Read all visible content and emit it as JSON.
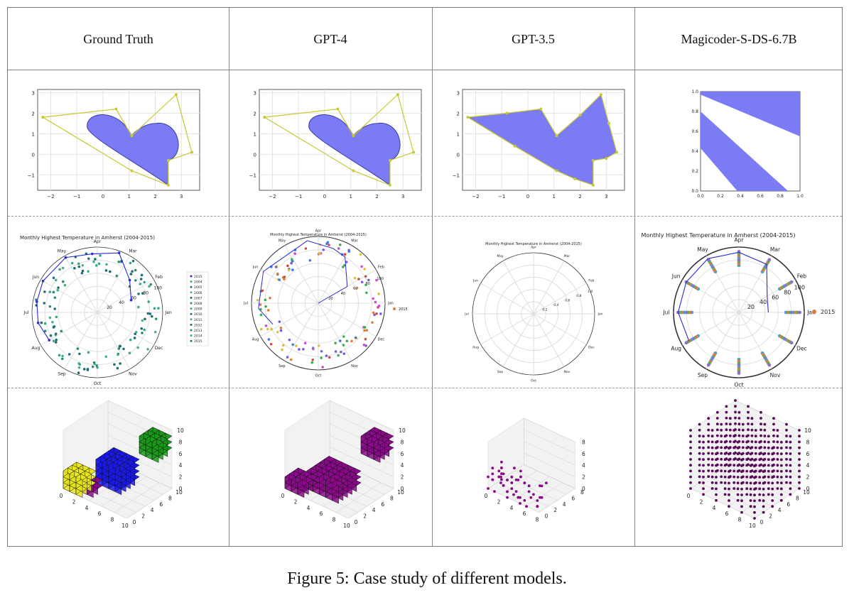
{
  "columns": [
    "Ground Truth",
    "GPT-4",
    "GPT-3.5",
    "Magicoder-S-DS-6.7B"
  ],
  "caption": "Figure 5: Case study of different models.",
  "row1_axes": {
    "x_ticks": [
      "−2",
      "−1",
      "0",
      "1",
      "2",
      "3"
    ],
    "y_ticks": [
      "3",
      "2",
      "1",
      "0",
      "−1"
    ],
    "unit_ticks": [
      "0.0",
      "0.2",
      "0.4",
      "0.6",
      "0.8",
      "1.0"
    ]
  },
  "row2": {
    "title": "Monthly Highest Temperature in Amherst (2004-2015)",
    "months": [
      "Jan",
      "Feb",
      "Mar",
      "Apr",
      "May",
      "Jun",
      "Jul",
      "Aug",
      "Sep",
      "Oct",
      "Nov",
      "Dec"
    ],
    "radial_ticks": [
      "20",
      "40",
      "60",
      "80",
      "100"
    ],
    "unit_radial_ticks": [
      "0.2",
      "0.4",
      "0.6",
      "0.8",
      "1.0"
    ],
    "legend_years": [
      "2015",
      "2004",
      "2005",
      "2006",
      "2007",
      "2008",
      "2009",
      "2010",
      "2011",
      "2012",
      "2013",
      "2014",
      "2015"
    ],
    "legend_single": "2015"
  },
  "row3_axes": {
    "ticks_10": [
      "0",
      "2",
      "4",
      "6",
      "8",
      "10"
    ],
    "ticks_8": [
      "0",
      "2",
      "4",
      "6",
      "8"
    ]
  },
  "colors": {
    "fill": "#7b7bf5",
    "polygon": "#c8c832",
    "series_line": "#2a2ad6",
    "teal": "#2a8a7a",
    "yellow_cube": "#e8e61a",
    "blue_cube": "#1a1ae8",
    "green_cube": "#1a9a1a",
    "purple_cube": "#8a0a8a"
  }
}
